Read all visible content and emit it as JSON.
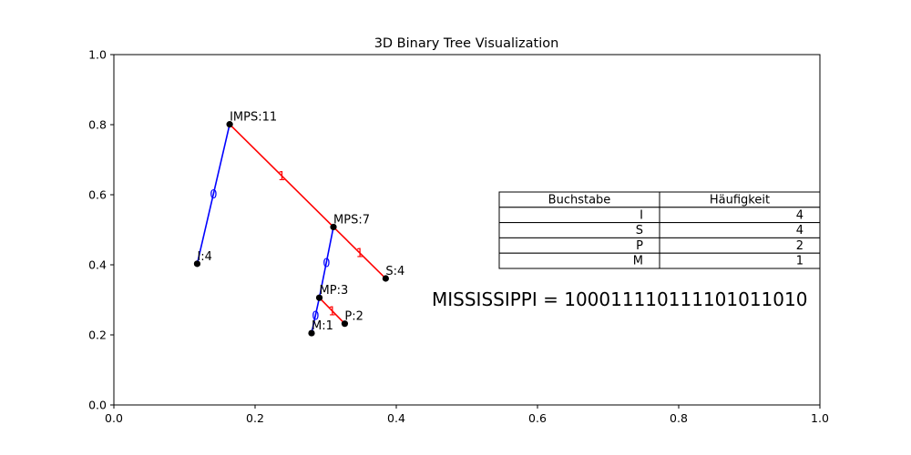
{
  "chart_data": {
    "type": "tree",
    "title": "3D Binary Tree Visualization",
    "xlim": [
      0.0,
      1.0
    ],
    "ylim": [
      0.0,
      1.0
    ],
    "xticks": [
      "0.0",
      "0.2",
      "0.4",
      "0.6",
      "0.8",
      "1.0"
    ],
    "yticks": [
      "0.0",
      "0.2",
      "0.4",
      "0.6",
      "0.8",
      "1.0"
    ],
    "nodes": [
      {
        "id": "IMPS",
        "label": "IMPS:11",
        "x": 0.164,
        "y": 0.801
      },
      {
        "id": "I",
        "label": "I:4",
        "x": 0.118,
        "y": 0.403
      },
      {
        "id": "MPS",
        "label": "MPS:7",
        "x": 0.311,
        "y": 0.508
      },
      {
        "id": "S",
        "label": "S:4",
        "x": 0.385,
        "y": 0.361
      },
      {
        "id": "MP",
        "label": "MP:3",
        "x": 0.291,
        "y": 0.306
      },
      {
        "id": "P",
        "label": "P:2",
        "x": 0.327,
        "y": 0.232
      },
      {
        "id": "M",
        "label": "M:1",
        "x": 0.28,
        "y": 0.205
      }
    ],
    "edges": [
      {
        "from": "IMPS",
        "to": "I",
        "label": "0",
        "color": "#0000ff"
      },
      {
        "from": "IMPS",
        "to": "MPS",
        "label": "1",
        "color": "#ff0000"
      },
      {
        "from": "MPS",
        "to": "MP",
        "label": "0",
        "color": "#0000ff"
      },
      {
        "from": "MPS",
        "to": "S",
        "label": "1",
        "color": "#ff0000"
      },
      {
        "from": "MP",
        "to": "M",
        "label": "0",
        "color": "#0000ff"
      },
      {
        "from": "MP",
        "to": "P",
        "label": "1",
        "color": "#ff0000"
      }
    ],
    "table": {
      "headers": [
        "Buchstabe",
        "Häufigkeit"
      ],
      "rows": [
        [
          "I",
          "4"
        ],
        [
          "S",
          "4"
        ],
        [
          "P",
          "2"
        ],
        [
          "M",
          "1"
        ]
      ]
    },
    "encoding_text": "MISSISSIPPI = 10001111011110101101​0"
  }
}
